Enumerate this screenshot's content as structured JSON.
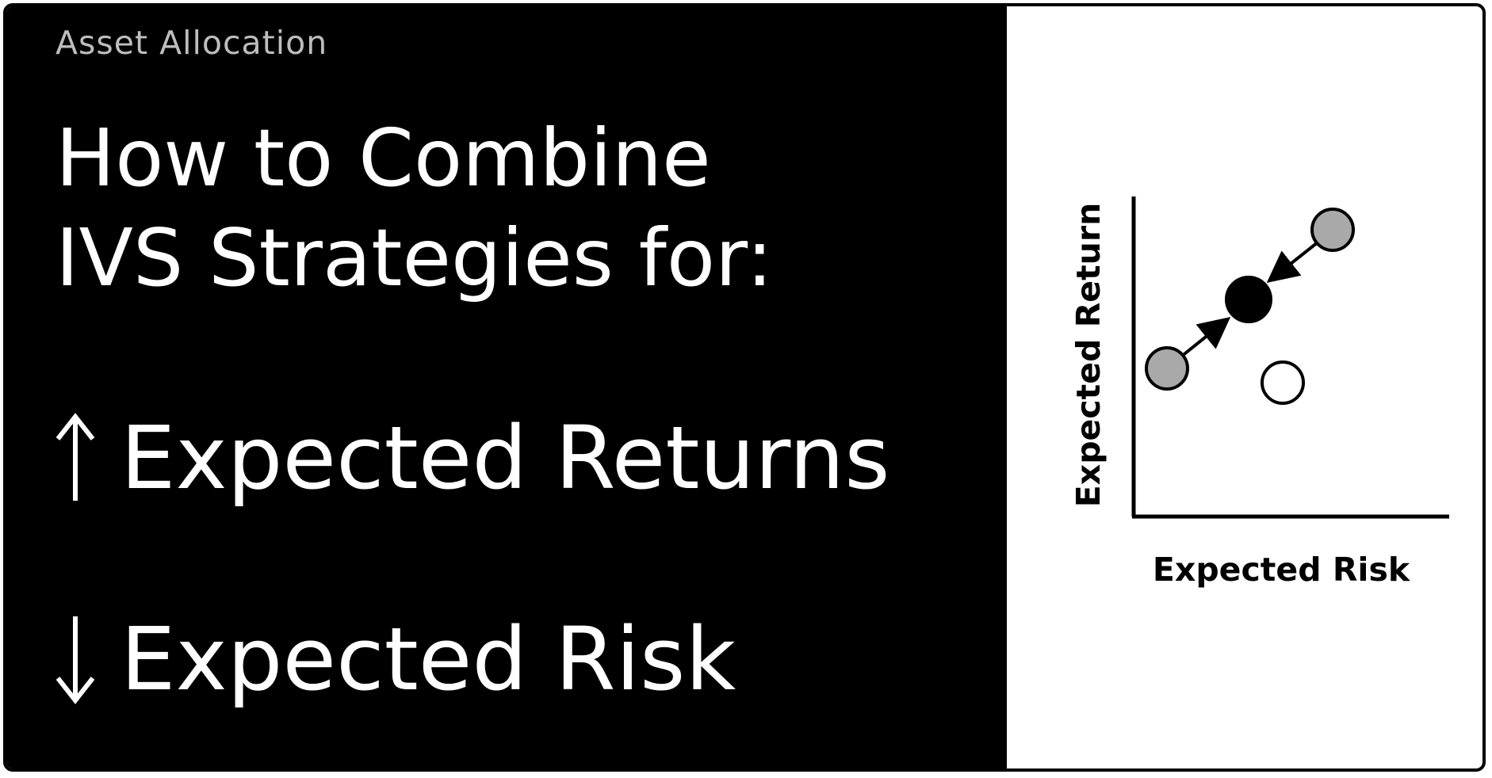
{
  "header": {
    "kicker": "Asset Allocation"
  },
  "headline": {
    "line1": "How to Combine",
    "line2": "IVS Strategies for:"
  },
  "goals": [
    {
      "arrow": "up-arrow-icon",
      "text": "Expected Returns"
    },
    {
      "arrow": "down-arrow-icon",
      "text": "Expected Risk"
    }
  ],
  "diagram": {
    "x_axis_label": "Expected Risk",
    "y_axis_label": "Expected Return",
    "points": [
      {
        "role": "strategy",
        "fill": "#a9a9a9"
      },
      {
        "role": "strategy",
        "fill": "#a9a9a9"
      },
      {
        "role": "combination",
        "fill": "#000000"
      },
      {
        "role": "other",
        "fill": "#ffffff"
      }
    ]
  },
  "colors": {
    "panel_background": "#000000",
    "card_background": "#ffffff",
    "headline": "#ffffff",
    "kicker": "#bdbdbd",
    "strategy_point": "#a9a9a9",
    "combined_point": "#000000"
  }
}
